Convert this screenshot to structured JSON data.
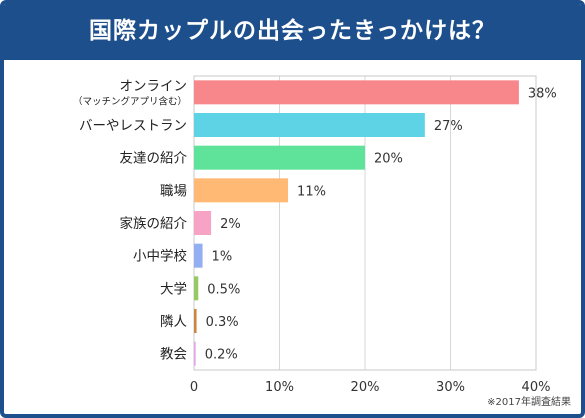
{
  "title": "国際カップルの出会ったきっかけは？",
  "note": "※2017年調査結果",
  "chart_data": {
    "type": "bar",
    "orientation": "horizontal",
    "categories": [
      [
        "オンライン",
        "（マッチングアプリ含む）"
      ],
      [
        "バーやレストラン"
      ],
      [
        "友達の紹介"
      ],
      [
        "職場"
      ],
      [
        "家族の紹介"
      ],
      [
        "小中学校"
      ],
      [
        "大学"
      ],
      [
        "隣人"
      ],
      [
        "教会"
      ]
    ],
    "values": [
      38,
      27,
      20,
      11,
      2,
      1,
      0.5,
      0.3,
      0.2
    ],
    "value_labels": [
      "38%",
      "27%",
      "20%",
      "11%",
      "2%",
      "1%",
      "0.5%",
      "0.3%",
      "0.2%"
    ],
    "colors": [
      "#f7878b",
      "#5ed3e6",
      "#5fe39a",
      "#ffb974",
      "#f7a3c6",
      "#94aef4",
      "#97c964",
      "#c9883b",
      "#e5a7ea"
    ],
    "xlim": [
      0,
      40
    ],
    "xticks": [
      "0",
      "10%",
      "20%",
      "30%",
      "40%"
    ],
    "xtick_values": [
      0,
      10,
      20,
      30,
      40
    ],
    "grid": true,
    "legend": "none"
  }
}
